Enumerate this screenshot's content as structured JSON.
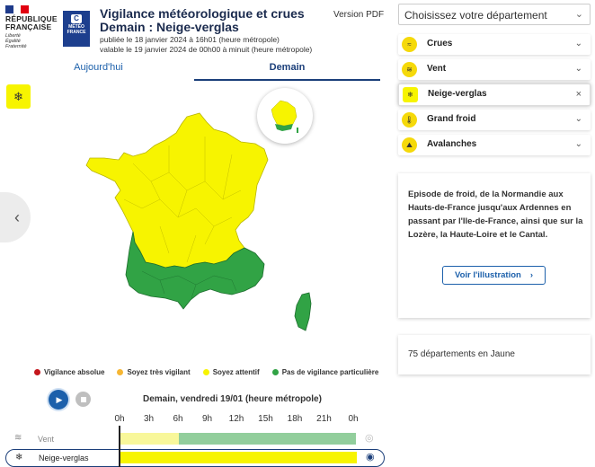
{
  "header": {
    "rf_text_1": "RÉPUBLIQUE",
    "rf_text_2": "FRANÇAISE",
    "rf_motto_1": "Liberté",
    "rf_motto_2": "Égalité",
    "rf_motto_3": "Fraternité",
    "mf_logo": "MÉTÉO FRANCE",
    "title_1": "Vigilance météorologique et crues",
    "title_2": "Demain : Neige-verglas",
    "published": "publiée le 18 janvier 2024 à 16h01 (heure métropole)",
    "valid": "valable le 19 janvier 2024 de 00h00 à minuit (heure métropole)",
    "pdf_label": "Version PDF"
  },
  "tabs": {
    "today": "Aujourd'hui",
    "tomorrow": "Demain"
  },
  "map_icons": {
    "active_hazard": "snowflake-ice-icon",
    "prev": "chevron-left-icon"
  },
  "legend": [
    {
      "label": "Vigilance absolue",
      "color": "#c4161c"
    },
    {
      "label": "Soyez très vigilant",
      "color": "#f6b634"
    },
    {
      "label": "Soyez attentif",
      "color": "#f7f400"
    },
    {
      "label": "Pas de vigilance particulière",
      "color": "#31a345"
    }
  ],
  "timeline": {
    "title": "Demain, vendredi 19/01 (heure métropole)",
    "hours": [
      "0h",
      "3h",
      "6h",
      "9h",
      "12h",
      "15h",
      "18h",
      "21h",
      "0h"
    ],
    "rows": [
      {
        "label": "Vent",
        "segments": [
          {
            "color": "#f8f79a",
            "from": 0,
            "to": 6
          },
          {
            "color": "#92ce9c",
            "from": 6,
            "to": 24
          }
        ]
      },
      {
        "label": "Neige-verglas",
        "segments": [
          {
            "color": "#f7f400",
            "from": 0,
            "to": 24
          }
        ]
      }
    ]
  },
  "department_select": {
    "placeholder": "Choisissez votre département"
  },
  "hazards": [
    {
      "label": "Crues",
      "icon": "waves-icon",
      "active": false
    },
    {
      "label": "Vent",
      "icon": "wind-icon",
      "active": false
    },
    {
      "label": "Neige-verglas",
      "icon": "snowflake-ice-icon",
      "active": true
    },
    {
      "label": "Grand froid",
      "icon": "thermometer-icon",
      "active": false
    },
    {
      "label": "Avalanches",
      "icon": "avalanche-icon",
      "active": false
    }
  ],
  "info": {
    "text": "Episode de froid, de la Normandie aux Hauts-de-France jusqu'aux Ardennes en passant par l'Ile-de-France, ainsi que sur la Lozère, la Haute-Loire et le Cantal.",
    "button": "Voir l'illustration"
  },
  "count": {
    "text": "75 départements en Jaune"
  },
  "colors": {
    "yellow": "#f7f400",
    "green": "#31a345",
    "accent": "#1c60ab",
    "navy": "#1b3f7a"
  }
}
